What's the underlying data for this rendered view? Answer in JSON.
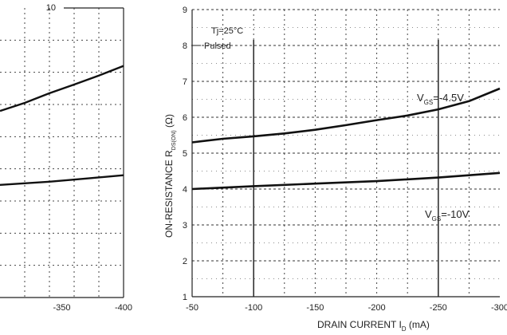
{
  "chart_data": [
    {
      "type": "line",
      "panel": "left (cropped)",
      "title": "",
      "xlabel": "",
      "ylabel": "",
      "xlim": [
        -300,
        -400
      ],
      "ylim": [
        1,
        10
      ],
      "x_ticks": [
        "-350",
        "-400"
      ],
      "y_ticks": [
        "10"
      ],
      "grid": true,
      "series": [
        {
          "x": [
            -300,
            -320,
            -340,
            -360,
            -380,
            -400
          ],
          "y": [
            6.8,
            7.05,
            7.35,
            7.62,
            7.9,
            8.2
          ]
        },
        {
          "x": [
            -300,
            -340,
            -370,
            -400
          ],
          "y": [
            4.5,
            4.6,
            4.7,
            4.8
          ]
        }
      ]
    },
    {
      "type": "line",
      "panel": "right",
      "title": "",
      "xlabel": "DRAIN CURRENT",
      "xlabel_symbol": "I",
      "xlabel_subscript": "D",
      "xlabel_unit": "(mA)",
      "ylabel": "ON-RESISTANCE",
      "ylabel_symbol": "R",
      "ylabel_subscript": "DS(ON)",
      "ylabel_unit": "(Ω)",
      "xlim": [
        -50,
        -300
      ],
      "ylim": [
        1,
        9
      ],
      "x_ticks": [
        "-50",
        "-100",
        "-150",
        "-200",
        "-250",
        "-300"
      ],
      "y_ticks": [
        "1",
        "2",
        "3",
        "4",
        "5",
        "6",
        "7",
        "8",
        "9"
      ],
      "grid": true,
      "annotations": [
        "Tj=25°C",
        "Pulsed"
      ],
      "series": [
        {
          "name": "VGS=-4.5V",
          "label": "V",
          "label_sub": "GS",
          "label_rest": "=-4.5V",
          "x": [
            -50,
            -75,
            -100,
            -125,
            -150,
            -175,
            -200,
            -225,
            -250,
            -275,
            -300
          ],
          "y": [
            5.3,
            5.4,
            5.47,
            5.55,
            5.65,
            5.78,
            5.92,
            6.05,
            6.22,
            6.45,
            6.8
          ]
        },
        {
          "name": "VGS=-10V",
          "label": "V",
          "label_sub": "GS",
          "label_rest": "=-10V",
          "x": [
            -50,
            -100,
            -150,
            -200,
            -250,
            -300
          ],
          "y": [
            4.0,
            4.08,
            4.15,
            4.22,
            4.32,
            4.45
          ]
        }
      ]
    }
  ]
}
